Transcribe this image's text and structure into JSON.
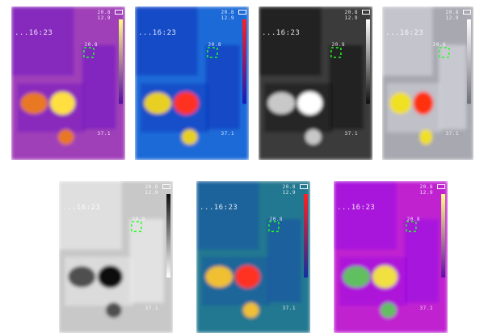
{
  "thumbnails": [
    {
      "palette": "ironbow",
      "colors": {
        "base": "#a040b8",
        "cool": "#7a20c0",
        "warm": "#e87820",
        "hot": "#ffe040",
        "scale_top": "#ffff80",
        "scale_bottom": "#5010a0"
      },
      "overlay": {
        "top_text": "20.8\n12.9",
        "date_text": "...16:23",
        "mid_text": "20.8",
        "temp_text": "37.1"
      }
    },
    {
      "palette": "rainbow",
      "colors": {
        "base": "#1a6ad8",
        "cool": "#1040c0",
        "warm": "#e8d020",
        "hot": "#ff3020",
        "scale_top": "#ff2020",
        "scale_bottom": "#1020c0"
      },
      "overlay": {
        "top_text": "20.8\n12.9",
        "date_text": "...16:23",
        "mid_text": "20.8",
        "temp_text": "37.1"
      }
    },
    {
      "palette": "white-hot",
      "colors": {
        "base": "#3a3a3a",
        "cool": "#1a1a1a",
        "warm": "#c8c8c8",
        "hot": "#ffffff",
        "scale_top": "#ffffff",
        "scale_bottom": "#101010"
      },
      "overlay": {
        "top_text": "20.8\n12.9",
        "date_text": "...16:23",
        "mid_text": "20.8",
        "temp_text": "37.1"
      }
    },
    {
      "palette": "highlight",
      "colors": {
        "base": "#a8a8b0",
        "cool": "#d0d0d8",
        "warm": "#f0e020",
        "hot": "#ff3010",
        "scale_top": "#ffffff",
        "scale_bottom": "#707078"
      },
      "overlay": {
        "top_text": "20.8\n12.9",
        "date_text": "...16:23",
        "mid_text": "20.8",
        "temp_text": "37.1"
      }
    },
    {
      "palette": "black-hot",
      "colors": {
        "base": "#c8c8c8",
        "cool": "#e8e8e8",
        "warm": "#505050",
        "hot": "#101010",
        "scale_top": "#101010",
        "scale_bottom": "#ffffff"
      },
      "overlay": {
        "top_text": "20.8\n12.9",
        "date_text": "...16:23",
        "mid_text": "20.8",
        "temp_text": "37.1"
      }
    },
    {
      "palette": "rainbow-hc",
      "colors": {
        "base": "#207890",
        "cool": "#1a5aa0",
        "warm": "#f0c030",
        "hot": "#ff3020",
        "scale_top": "#ff2020",
        "scale_bottom": "#1030a0"
      },
      "overlay": {
        "top_text": "20.8\n12.9",
        "date_text": "...16:23",
        "mid_text": "20.8",
        "temp_text": "37.1"
      }
    },
    {
      "palette": "lava",
      "colors": {
        "base": "#c020d0",
        "cool": "#a010e0",
        "warm": "#60c060",
        "hot": "#f0e040",
        "scale_top": "#ffff80",
        "scale_bottom": "#6010a0"
      },
      "overlay": {
        "top_text": "20.8\n12.9",
        "date_text": "...16:23",
        "mid_text": "20.8",
        "temp_text": "37.1"
      }
    }
  ]
}
